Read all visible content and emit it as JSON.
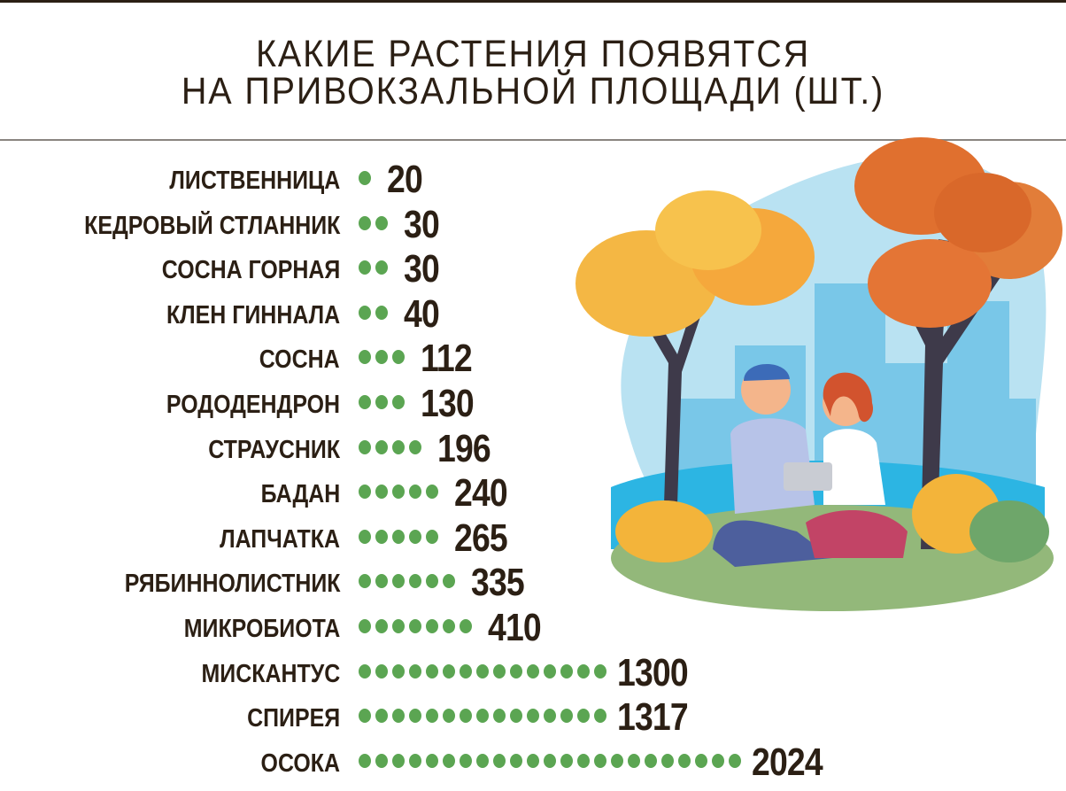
{
  "title_lines": [
    "КАКИЕ РАСТЕНИЯ ПОЯВЯТСЯ",
    "НА ПРИВОКЗАЛЬНОЙ ПЛОЩАДИ (ШТ.)"
  ],
  "colors": {
    "dot": "#5ba552",
    "text": "#2b1f14",
    "sky": "#a9dcef"
  },
  "chart_data": {
    "type": "bar",
    "title": "КАКИЕ РАСТЕНИЯ ПОЯВЯТСЯ НА ПРИВОКЗАЛЬНОЙ ПЛОЩАДИ (ШТ.)",
    "unit": "шт.",
    "mark": "dot-pictogram",
    "categories": [
      "ЛИСТВЕННИЦА",
      "КЕДРОВЫЙ СТЛАННИК",
      "СОСНА ГОРНАЯ",
      "КЛЕН ГИННАЛА",
      "СОСНА",
      "РОДОДЕНДРОН",
      "СТРАУСНИК",
      "БАДАН",
      "ЛАПЧАТКА",
      "РЯБИННОЛИСТНИК",
      "МИКРОБИОТА",
      "МИСКАНТУС",
      "СПИРЕЯ",
      "ОСОКА"
    ],
    "values": [
      20,
      30,
      30,
      40,
      112,
      130,
      196,
      240,
      265,
      335,
      410,
      1300,
      1317,
      2024
    ],
    "value_labels": [
      "20",
      "30",
      "30",
      "40",
      "112",
      "130",
      "196",
      "240",
      "265",
      "335",
      "410",
      "1300",
      "1317",
      "2024"
    ],
    "dot_counts": [
      1,
      2,
      2,
      2,
      3,
      3,
      4,
      5,
      5,
      6,
      7,
      15,
      15,
      23
    ]
  }
}
